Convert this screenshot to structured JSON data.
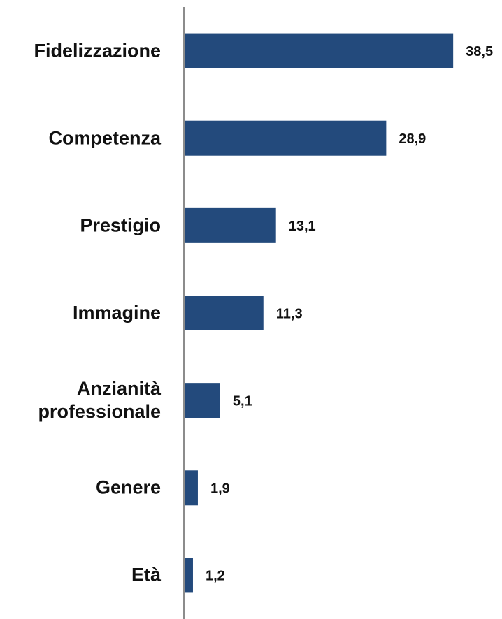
{
  "chart_data": {
    "type": "bar",
    "orientation": "horizontal",
    "categories": [
      "Fidelizzazione",
      "Competenza",
      "Prestigio",
      "Immagine",
      "Anzianità professionale",
      "Genere",
      "Età"
    ],
    "values": [
      38.5,
      28.9,
      13.1,
      11.3,
      5.1,
      1.9,
      1.2
    ],
    "value_labels": [
      "38,5",
      "28,9",
      "13,1",
      "11,3",
      "5,1",
      "1,9",
      "1,2"
    ],
    "color": "#234a7c",
    "xlim": [
      0,
      45.5
    ]
  }
}
